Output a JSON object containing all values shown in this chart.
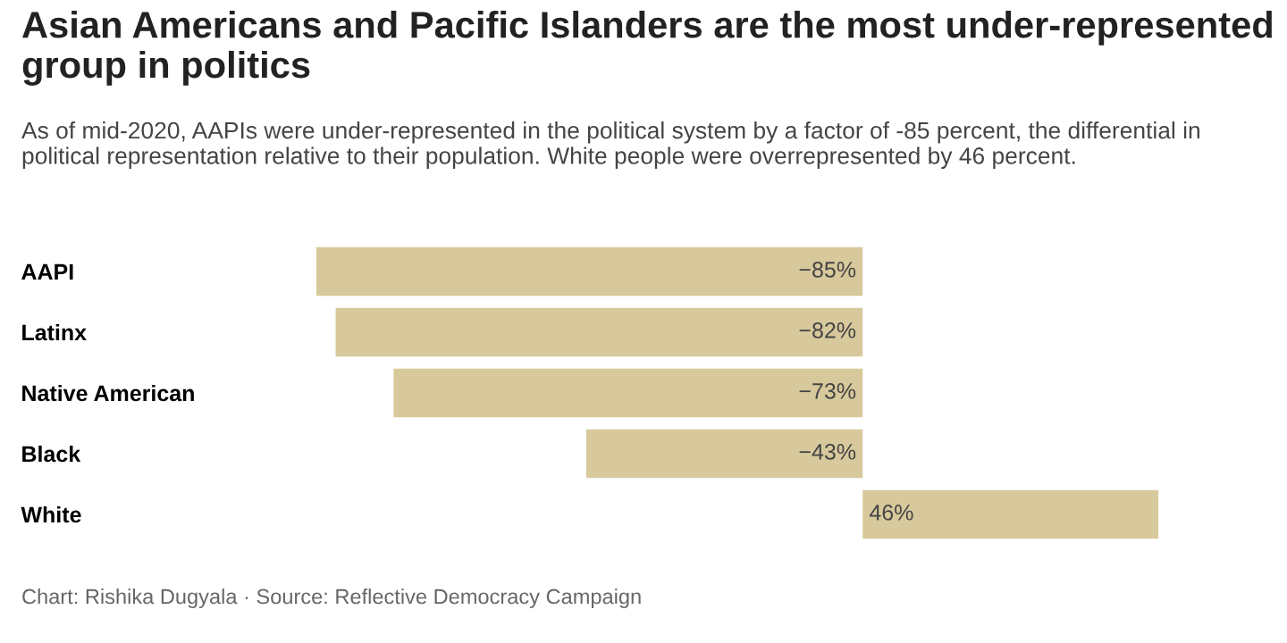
{
  "chart_data": {
    "type": "bar",
    "orientation": "horizontal",
    "title": "Asian Americans and Pacific Islanders are the most under-represented group in politics",
    "subtitle": "As of mid-2020, AAPIs were under-represented in the political system by a factor of -85 percent, the differential in political representation relative to their population. White people were overrepresented by 46 percent.",
    "categories": [
      "AAPI",
      "Latinx",
      "Native American",
      "Black",
      "White"
    ],
    "values": [
      -85,
      -82,
      -73,
      -43,
      46
    ],
    "value_labels": [
      "−85%",
      "−82%",
      "−73%",
      "−43%",
      "46%"
    ],
    "color": "#d8c99c",
    "xlim": [
      -85,
      46
    ],
    "annotations": [
      "Chart: Rishika Dugyala · Source: Reflective Democracy Campaign"
    ]
  }
}
